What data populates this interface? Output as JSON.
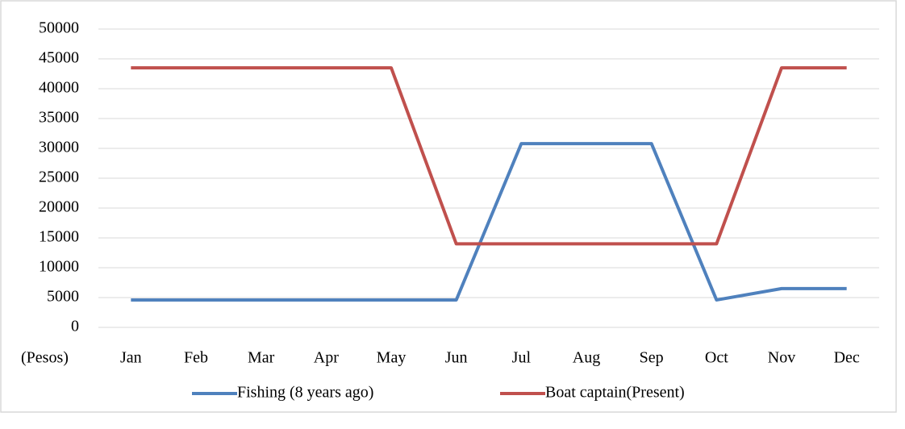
{
  "chart_data": {
    "type": "line",
    "y_label": "(Pesos)",
    "categories": [
      "Jan",
      "Feb",
      "Mar",
      "Apr",
      "May",
      "Jun",
      "Jul",
      "Aug",
      "Sep",
      "Oct",
      "Nov",
      "Dec"
    ],
    "series": [
      {
        "name": "Fishing (8 years ago)",
        "color": "#4f81bd",
        "values": [
          4600,
          4600,
          4600,
          4600,
          4600,
          4600,
          30800,
          30800,
          30800,
          4600,
          6500,
          6500
        ]
      },
      {
        "name": "Boat captain(Present)",
        "color": "#c0504d",
        "values": [
          43500,
          43500,
          43500,
          43500,
          43500,
          14000,
          14000,
          14000,
          14000,
          14000,
          43500,
          43500
        ]
      }
    ],
    "ylim": [
      0,
      50000
    ],
    "yticks": [
      0,
      5000,
      10000,
      15000,
      20000,
      25000,
      30000,
      35000,
      40000,
      45000,
      50000
    ],
    "grid": true,
    "legend": "bottom"
  }
}
